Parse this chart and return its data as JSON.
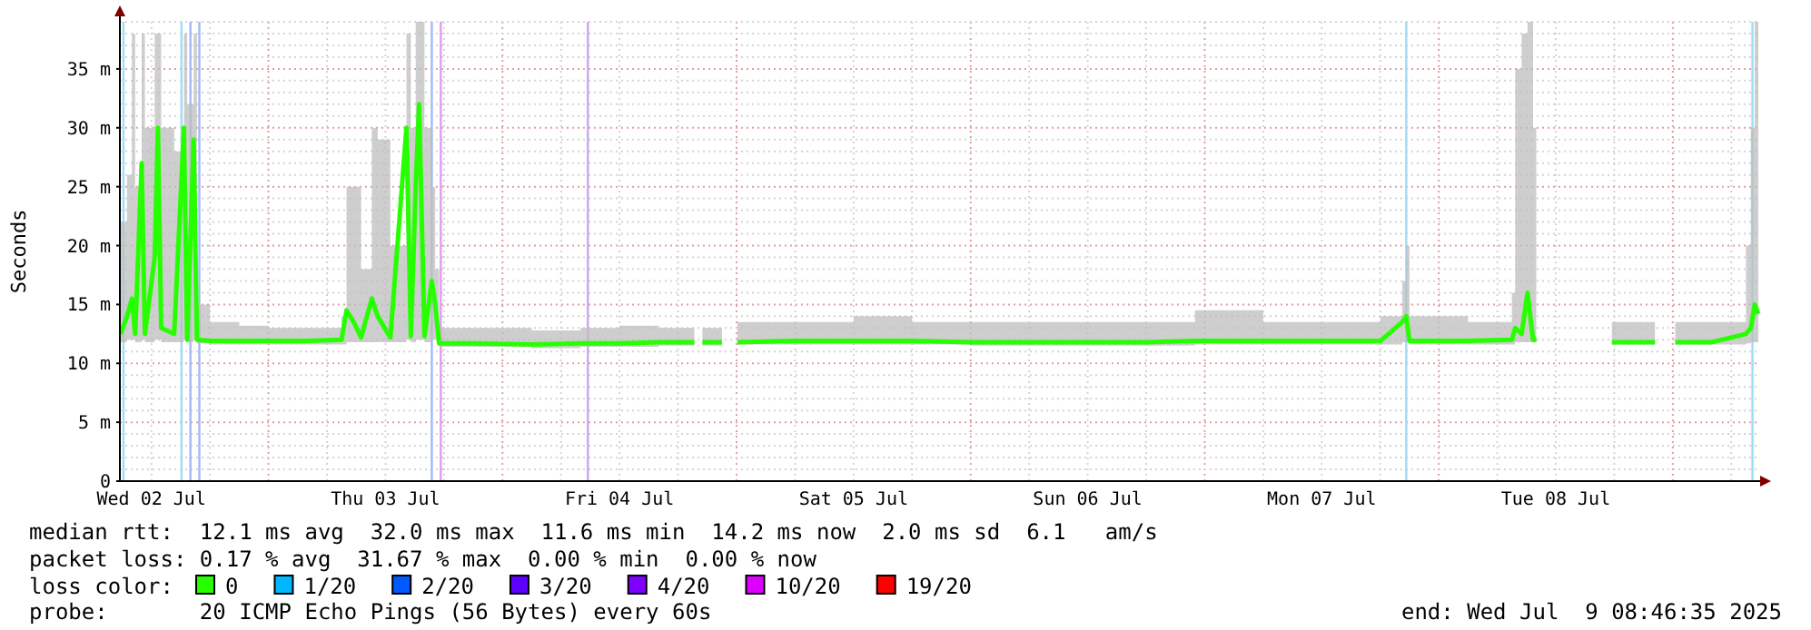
{
  "chart_data": {
    "type": "line",
    "ylabel": "Seconds",
    "xlim": [
      "2025-07-02T08:46",
      "2025-07-09T08:46"
    ],
    "xticks": [
      {
        "value": "2025-07-02T12:00",
        "label": "Wed 02 Jul"
      },
      {
        "value": "2025-07-02T18:00",
        "label": null
      },
      {
        "value": "2025-07-03T00:00",
        "label": null
      },
      {
        "value": "2025-07-03T06:00",
        "label": null
      },
      {
        "value": "2025-07-03T12:00",
        "label": "Thu 03 Jul"
      },
      {
        "value": "2025-07-03T18:00",
        "label": null
      },
      {
        "value": "2025-07-04T00:00",
        "label": null
      },
      {
        "value": "2025-07-04T06:00",
        "label": null
      },
      {
        "value": "2025-07-04T12:00",
        "label": "Fri 04 Jul"
      },
      {
        "value": "2025-07-04T18:00",
        "label": null
      },
      {
        "value": "2025-07-05T00:00",
        "label": null
      },
      {
        "value": "2025-07-05T06:00",
        "label": null
      },
      {
        "value": "2025-07-05T12:00",
        "label": "Sat 05 Jul"
      },
      {
        "value": "2025-07-05T18:00",
        "label": null
      },
      {
        "value": "2025-07-06T00:00",
        "label": null
      },
      {
        "value": "2025-07-06T06:00",
        "label": null
      },
      {
        "value": "2025-07-06T12:00",
        "label": "Sun 06 Jul"
      },
      {
        "value": "2025-07-06T18:00",
        "label": null
      },
      {
        "value": "2025-07-07T00:00",
        "label": null
      },
      {
        "value": "2025-07-07T06:00",
        "label": null
      },
      {
        "value": "2025-07-07T12:00",
        "label": "Mon 07 Jul"
      },
      {
        "value": "2025-07-07T18:00",
        "label": null
      },
      {
        "value": "2025-07-08T00:00",
        "label": null
      },
      {
        "value": "2025-07-08T06:00",
        "label": null
      },
      {
        "value": "2025-07-08T12:00",
        "label": "Tue 08 Jul"
      },
      {
        "value": "2025-07-08T18:00",
        "label": null
      },
      {
        "value": "2025-07-09T00:00",
        "label": null
      },
      {
        "value": "2025-07-09T06:00",
        "label": null
      }
    ],
    "ylim": [
      0,
      39
    ],
    "yticks": [
      {
        "value": 0,
        "label": "0"
      },
      {
        "value": 1,
        "label": null
      },
      {
        "value": 2,
        "label": null
      },
      {
        "value": 3,
        "label": null
      },
      {
        "value": 4,
        "label": null
      },
      {
        "value": 5,
        "label": "5 m"
      },
      {
        "value": 6,
        "label": null
      },
      {
        "value": 7,
        "label": null
      },
      {
        "value": 8,
        "label": null
      },
      {
        "value": 9,
        "label": null
      },
      {
        "value": 10,
        "label": "10 m"
      },
      {
        "value": 11,
        "label": null
      },
      {
        "value": 12,
        "label": null
      },
      {
        "value": 13,
        "label": null
      },
      {
        "value": 14,
        "label": null
      },
      {
        "value": 15,
        "label": "15 m"
      },
      {
        "value": 16,
        "label": null
      },
      {
        "value": 17,
        "label": null
      },
      {
        "value": 18,
        "label": null
      },
      {
        "value": 19,
        "label": null
      },
      {
        "value": 20,
        "label": "20 m"
      },
      {
        "value": 21,
        "label": null
      },
      {
        "value": 22,
        "label": null
      },
      {
        "value": 23,
        "label": null
      },
      {
        "value": 24,
        "label": null
      },
      {
        "value": 25,
        "label": "25 m"
      },
      {
        "value": 26,
        "label": null
      },
      {
        "value": 27,
        "label": null
      },
      {
        "value": 28,
        "label": null
      },
      {
        "value": 29,
        "label": null
      },
      {
        "value": 30,
        "label": "30 m"
      },
      {
        "value": 31,
        "label": null
      },
      {
        "value": 32,
        "label": null
      },
      {
        "value": 33,
        "label": null
      },
      {
        "value": 34,
        "label": null
      },
      {
        "value": 35,
        "label": "35 m"
      },
      {
        "value": 36,
        "label": null
      },
      {
        "value": 37,
        "label": null
      },
      {
        "value": 38,
        "label": null
      },
      {
        "value": 39,
        "label": null
      }
    ],
    "grid": true,
    "legend": "bottom",
    "marker": "none",
    "line_style": "solid",
    "series": [
      {
        "name": "0",
        "color": "#26ff00",
        "x": [
          "2025-07-02T08:50",
          "2025-07-02T09:30",
          "2025-07-02T10:00",
          "2025-07-02T10:20",
          "2025-07-02T11:00",
          "2025-07-02T11:20",
          "2025-07-02T12:20",
          "2025-07-02T12:40",
          "2025-07-02T13:00",
          "2025-07-02T14:20",
          "2025-07-02T15:20",
          "2025-07-02T15:40",
          "2025-07-02T16:20",
          "2025-07-02T16:40",
          "2025-07-02T18:00",
          "2025-07-02T21:00",
          "2025-07-03T00:00",
          "2025-07-03T04:00",
          "2025-07-03T07:30",
          "2025-07-03T08:00",
          "2025-07-03T08:45",
          "2025-07-03T09:30",
          "2025-07-03T10:36",
          "2025-07-03T11:12",
          "2025-07-03T12:30",
          "2025-07-03T14:09",
          "2025-07-03T14:36",
          "2025-07-03T15:06",
          "2025-07-03T15:27",
          "2025-07-03T16:00",
          "2025-07-03T16:45",
          "2025-07-03T17:06",
          "2025-07-03T17:30",
          "2025-07-03T21:00",
          "2025-07-04T03:00",
          "2025-07-04T08:00",
          "2025-07-04T12:00",
          "2025-07-04T16:00",
          "2025-07-04T19:40",
          "2025-07-04T19:45",
          "2025-07-04T20:30",
          "2025-07-04T22:30",
          "2025-07-04T22:35",
          "2025-07-05T00:05",
          "2025-07-05T06:00",
          "2025-07-05T12:00",
          "2025-07-05T18:00",
          "2025-07-06T00:00",
          "2025-07-06T06:00",
          "2025-07-06T12:00",
          "2025-07-06T18:00",
          "2025-07-06T23:00",
          "2025-07-07T06:00",
          "2025-07-07T12:00",
          "2025-07-07T18:00",
          "2025-07-07T20:15",
          "2025-07-07T20:40",
          "2025-07-07T21:00",
          "2025-07-08T03:00",
          "2025-07-08T07:30",
          "2025-07-08T07:50",
          "2025-07-08T08:30",
          "2025-07-08T09:06",
          "2025-07-08T09:40",
          "2025-07-08T10:00",
          "2025-07-08T10:05",
          "2025-07-08T17:45",
          "2025-07-08T22:10",
          "2025-07-08T22:15",
          "2025-07-09T00:15",
          "2025-07-09T04:00",
          "2025-07-09T07:30",
          "2025-07-09T08:00",
          "2025-07-09T08:24",
          "2025-07-09T08:46"
        ],
        "values": [
          12.5,
          14,
          15.5,
          12.5,
          27,
          12.5,
          19,
          30,
          13,
          12.5,
          30,
          12,
          29,
          12,
          11.9,
          11.9,
          11.9,
          11.9,
          12,
          14.5,
          13.5,
          12.2,
          15.5,
          14,
          12.2,
          30,
          12.3,
          25,
          32,
          12.3,
          17,
          15,
          11.7,
          11.7,
          11.6,
          11.7,
          11.7,
          11.8,
          11.8,
          null,
          11.8,
          11.8,
          null,
          11.8,
          11.9,
          11.9,
          11.9,
          11.8,
          11.8,
          11.8,
          11.8,
          11.9,
          11.9,
          11.9,
          11.9,
          13.5,
          14,
          11.9,
          11.9,
          12,
          13,
          12.5,
          16,
          12,
          12,
          null,
          11.8,
          11.8,
          null,
          11.8,
          11.8,
          12.5,
          13,
          15,
          14.2
        ],
        "lower": [
          11.8,
          12,
          12,
          11.8,
          12,
          11.8,
          12,
          12,
          11.8,
          11.8,
          12,
          11.8,
          12,
          11.7,
          11.6,
          11.6,
          11.6,
          11.6,
          11.6,
          11.8,
          11.8,
          11.8,
          11.8,
          11.8,
          11.8,
          12,
          11.8,
          12,
          12,
          11.8,
          12,
          12,
          11.4,
          11.4,
          11.3,
          11.4,
          11.4,
          11.5,
          11.5,
          null,
          11.5,
          11.5,
          null,
          11.6,
          11.6,
          11.6,
          11.6,
          11.5,
          11.5,
          11.5,
          11.5,
          11.6,
          11.6,
          11.6,
          11.6,
          11.8,
          11.8,
          11.6,
          11.6,
          11.6,
          11.8,
          11.8,
          11.8,
          11.8,
          11.7,
          null,
          11.6,
          11.6,
          null,
          11.6,
          11.6,
          11.7,
          11.8,
          11.8,
          11.8
        ],
        "upper": [
          22,
          26,
          38,
          25,
          38,
          30,
          38,
          38,
          30,
          28,
          38,
          32,
          38,
          15,
          13.5,
          13.2,
          13,
          13,
          14,
          25,
          25,
          18,
          30,
          29,
          20,
          38,
          30,
          39,
          39,
          30,
          25,
          18,
          13,
          13,
          12.8,
          13,
          13.2,
          13,
          13,
          null,
          13,
          13,
          null,
          13.5,
          13.5,
          14,
          13.5,
          13.5,
          13.5,
          13.5,
          13.5,
          14.5,
          13.5,
          13.5,
          14,
          17,
          20,
          14,
          13.5,
          16,
          35,
          38,
          39,
          30,
          20,
          null,
          13.5,
          13.2,
          null,
          13.5,
          13.5,
          20,
          30,
          39,
          38
        ]
      },
      {
        "name": "1/20",
        "color": "#00b8ff"
      },
      {
        "name": "2/20",
        "color": "#0059ff"
      },
      {
        "name": "3/20",
        "color": "#5e00ff"
      },
      {
        "name": "4/20",
        "color": "#7e00ff"
      },
      {
        "name": "10/20",
        "color": "#dd00ff"
      },
      {
        "name": "19/20",
        "color": "#ff0000"
      }
    ],
    "ref_lines": [
      {
        "axis": "x",
        "value": "2025-07-02T09:08",
        "color": "#9fdcf5"
      },
      {
        "axis": "x",
        "value": "2025-07-02T15:05",
        "color": "#9fdcf5"
      },
      {
        "axis": "x",
        "value": "2025-07-02T16:00",
        "color": "#a4b8f5"
      },
      {
        "axis": "x",
        "value": "2025-07-02T16:55",
        "color": "#a4b8f5"
      },
      {
        "axis": "x",
        "value": "2025-07-03T16:45",
        "color": "#a4b8f5"
      },
      {
        "axis": "x",
        "value": "2025-07-03T17:40",
        "color": "#e29cf0"
      },
      {
        "axis": "x",
        "value": "2025-07-04T08:45",
        "color": "#c8a8f0"
      },
      {
        "axis": "x",
        "value": "2025-07-07T20:40",
        "color": "#9fdcf5"
      },
      {
        "axis": "x",
        "value": "2025-07-09T08:10",
        "color": "#9fdcf5"
      }
    ],
    "annotations": [
      "median rtt:  12.1 ms avg  32.0 ms max  11.6 ms min  14.2 ms now  2.0 ms sd  6.1   am/s",
      "packet loss: 0.17 % avg  31.67 % max  0.00 % min  0.00 % now",
      "loss color:",
      "probe:       20 ICMP Echo Pings (56 Bytes) every 60s",
      "end: Wed Jul  9 08:46:35 2025"
    ]
  }
}
